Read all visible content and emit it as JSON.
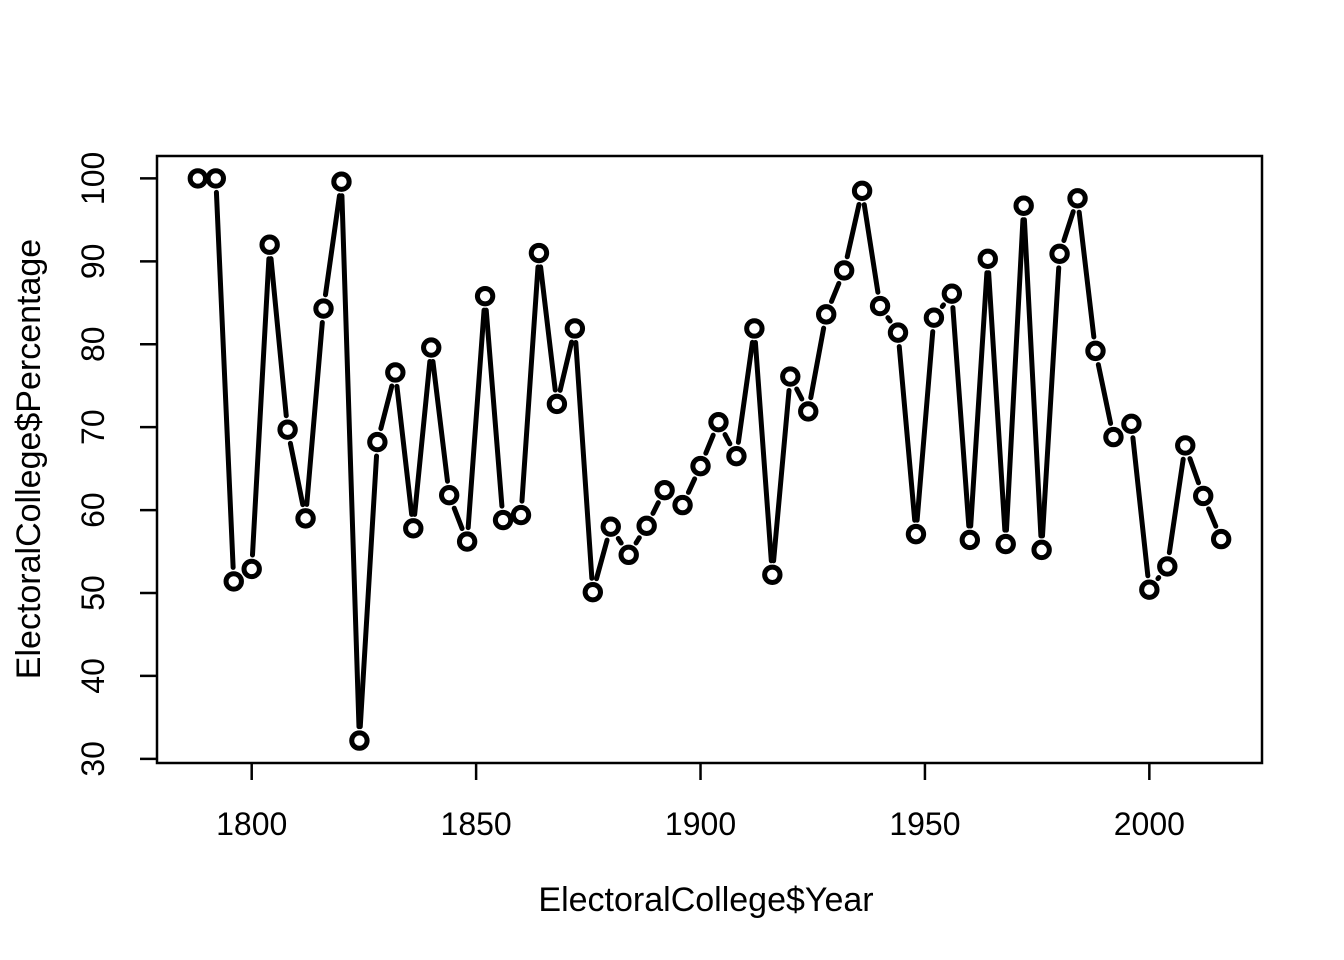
{
  "figure": {
    "background_color": "#ffffff",
    "foreground_color": "#000000"
  },
  "chart_data": {
    "type": "line",
    "title": "",
    "xlabel": "ElectoralCollege$Year",
    "ylabel": "ElectoralCollege$Percentage",
    "x_ticks": [
      1800,
      1850,
      1900,
      1950,
      2000
    ],
    "y_ticks": [
      30,
      40,
      50,
      60,
      70,
      80,
      90,
      100
    ],
    "xlim": [
      1778.9,
      2025.1
    ],
    "ylim": [
      29.5,
      102.7
    ],
    "grid": false,
    "legend_position": "none",
    "marker": "open-circle",
    "plot_type_r": "b",
    "line_color": "#000000",
    "series": [
      {
        "name": "ElectoralCollege$Percentage",
        "x": [
          1788,
          1792,
          1796,
          1800,
          1804,
          1808,
          1812,
          1816,
          1820,
          1824,
          1828,
          1832,
          1836,
          1840,
          1844,
          1848,
          1852,
          1856,
          1860,
          1864,
          1868,
          1872,
          1876,
          1880,
          1884,
          1888,
          1892,
          1896,
          1900,
          1904,
          1908,
          1912,
          1916,
          1920,
          1924,
          1928,
          1932,
          1936,
          1940,
          1944,
          1948,
          1952,
          1956,
          1960,
          1964,
          1968,
          1972,
          1976,
          1980,
          1984,
          1988,
          1992,
          1996,
          2000,
          2004,
          2008,
          2012,
          2016
        ],
        "y": [
          100,
          100,
          51.4,
          52.9,
          92,
          69.7,
          59,
          84.3,
          99.6,
          32.2,
          68.2,
          76.6,
          57.8,
          79.6,
          61.8,
          56.2,
          85.8,
          58.8,
          59.4,
          91,
          72.8,
          81.9,
          50.1,
          58,
          54.6,
          58.1,
          62.4,
          60.6,
          65.3,
          70.6,
          66.5,
          81.9,
          52.2,
          76.1,
          71.9,
          83.6,
          88.9,
          98.5,
          84.6,
          81.4,
          57.1,
          83.2,
          86.1,
          56.4,
          90.3,
          55.9,
          96.7,
          55.2,
          90.9,
          97.6,
          79.2,
          68.8,
          70.4,
          50.4,
          53.2,
          67.8,
          61.7,
          56.5
        ]
      }
    ]
  }
}
